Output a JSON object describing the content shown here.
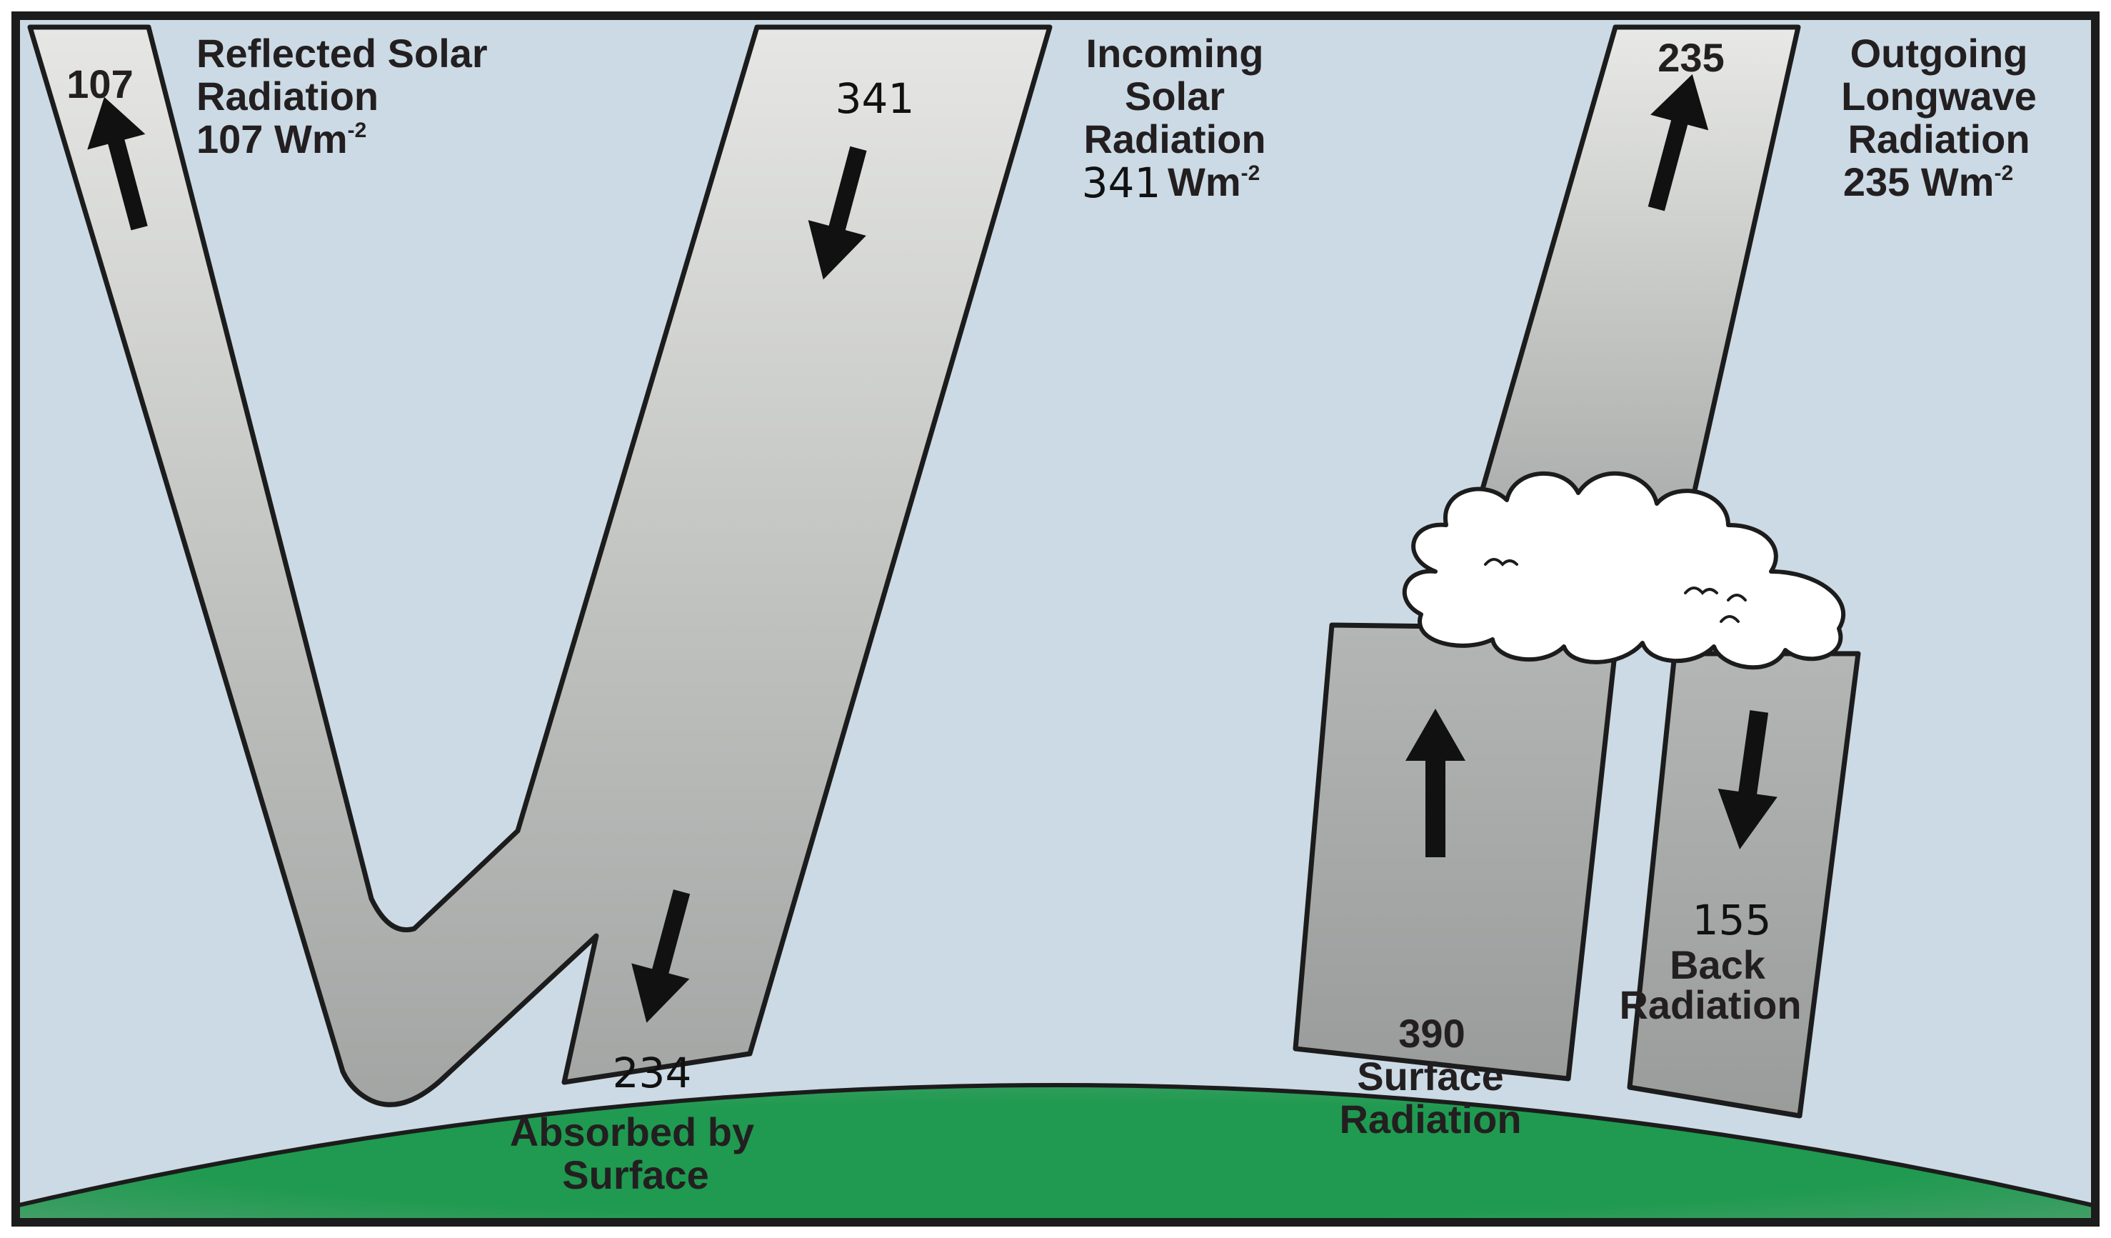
{
  "colors": {
    "sky": "#cbdae4",
    "beam_light": "#e4e5e3",
    "beam_dark": "#9fa2a0",
    "ground": "#1e9a4f",
    "ground_edge": "#6aa77e",
    "frame": "#1c1c1c",
    "arrow": "#111111",
    "cloud": "#ffffff"
  },
  "reflected": {
    "value_label": "107",
    "title_line1": "Reflected Solar",
    "title_line2": "Radiation",
    "flux_value": "107 Wm",
    "flux_exp": "-2"
  },
  "incoming": {
    "value_label": "341",
    "title_line1": "Incoming",
    "title_line2": "Solar",
    "title_line3": "Radiation",
    "flux_value": "341",
    "flux_unit": "Wm",
    "flux_exp": "-2"
  },
  "outgoing": {
    "value_label": "235",
    "title_line1": "Outgoing",
    "title_line2": "Longwave",
    "title_line3": "Radiation",
    "flux_value": "235 Wm",
    "flux_exp": "-2"
  },
  "absorbed": {
    "value_label": "234",
    "line1": "Absorbed by",
    "line2": "Surface"
  },
  "surface": {
    "value_label": "390",
    "line1": "Surface",
    "line2": "Radiation"
  },
  "back": {
    "value_label": "155",
    "line1": "Back",
    "line2": "Radiation"
  }
}
